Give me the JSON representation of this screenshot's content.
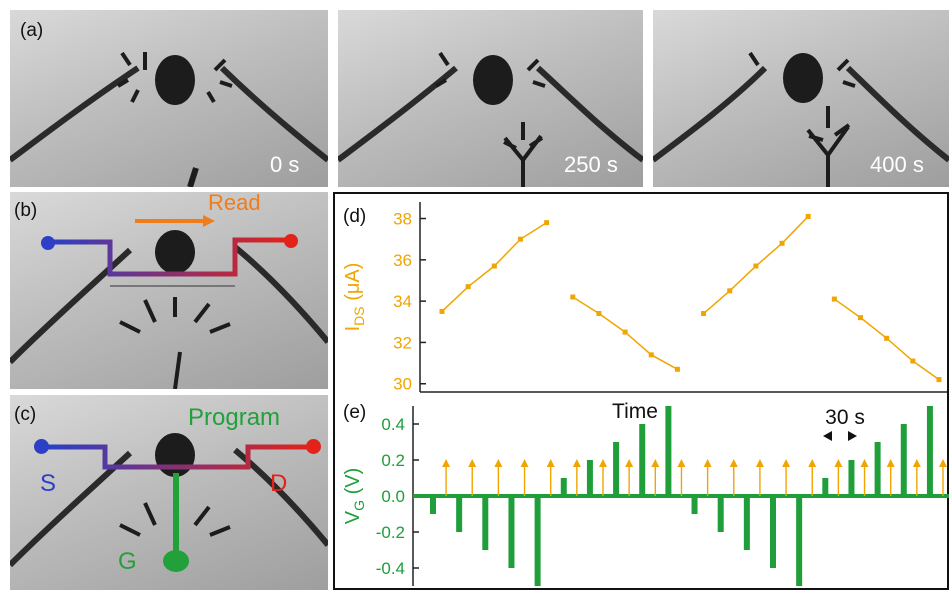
{
  "panels": {
    "a": {
      "label": "(a)",
      "times": [
        "0 s",
        "250 s",
        "400 s"
      ]
    },
    "b": {
      "label": "(b)",
      "annotation": "Read"
    },
    "c": {
      "label": "(c)",
      "annotation": "Program",
      "terminals": {
        "source": "S",
        "drain": "D",
        "gate": "G"
      }
    },
    "d": {
      "label": "(d)"
    },
    "e": {
      "label": "(e)"
    }
  },
  "colors": {
    "ids": "#f0a500",
    "vg": "#1f9e3a",
    "source": "#2b3fc7",
    "drain": "#e32219",
    "read": "#f07d1a",
    "program": "#22a03a"
  },
  "chart_data": [
    {
      "type": "line",
      "panel": "(d)",
      "ylabel": "I_DS (μA)",
      "ylabel_main": "I",
      "ylabel_sub": "DS",
      "ylabel_unit": "(μA)",
      "ylim": [
        29.6,
        38.8
      ],
      "yticks": [
        "30",
        "32",
        "34",
        "36",
        "38"
      ],
      "ytick_values": [
        30,
        32,
        34,
        36,
        38
      ],
      "series": [
        {
          "x": [
            1,
            2,
            3,
            4,
            5
          ],
          "values": [
            33.5,
            34.7,
            35.7,
            37.0,
            37.8
          ]
        },
        {
          "x": [
            6,
            7,
            8,
            9,
            10
          ],
          "values": [
            34.2,
            33.4,
            32.5,
            31.4,
            30.7
          ]
        },
        {
          "x": [
            11,
            12,
            13,
            14,
            15
          ],
          "values": [
            33.4,
            34.5,
            35.7,
            36.8,
            38.1
          ]
        },
        {
          "x": [
            16,
            17,
            18,
            19,
            20
          ],
          "values": [
            34.1,
            33.2,
            32.2,
            31.1,
            30.2
          ]
        }
      ]
    },
    {
      "type": "bar",
      "panel": "(e)",
      "xlabel": "Time",
      "ylabel": "V_G (V)",
      "ylabel_main": "V",
      "ylabel_sub": "G",
      "ylabel_unit": "(V)",
      "ylim": [
        -0.5,
        0.5
      ],
      "yticks": [
        "-0.4",
        "-0.2",
        "0.0",
        "0.2",
        "0.4"
      ],
      "ytick_values": [
        -0.4,
        -0.2,
        0.0,
        0.2,
        0.4
      ],
      "scale_annotation": "30 s",
      "program_pulses": [
        -0.1,
        -0.2,
        -0.3,
        -0.4,
        -0.5,
        0.1,
        0.2,
        0.3,
        0.4,
        0.5,
        -0.1,
        -0.2,
        -0.3,
        -0.4,
        -0.5,
        0.1,
        0.2,
        0.3,
        0.4,
        0.5
      ],
      "read_pulse_value": 0.2,
      "read_pulse_count": 20
    }
  ]
}
